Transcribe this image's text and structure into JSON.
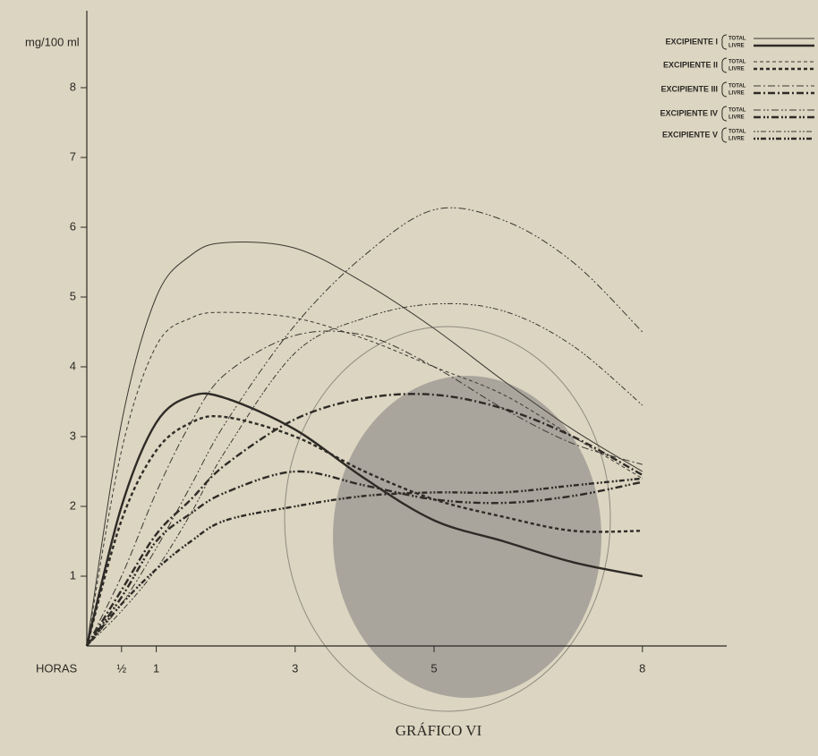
{
  "chart_data": {
    "type": "line",
    "title": "GRÁFICO VI",
    "y_label": "mg/100 ml",
    "x_label": "HORAS",
    "x": [
      0,
      0.5,
      1,
      1.5,
      2,
      3,
      4,
      5,
      6,
      7,
      8
    ],
    "xlim": [
      0,
      9.2
    ],
    "xticks": [
      {
        "value": 0.5,
        "label": "½"
      },
      1,
      3,
      5,
      8
    ],
    "ylim": [
      0,
      9
    ],
    "yticks": [
      1,
      2,
      3,
      4,
      5,
      6,
      7,
      8
    ],
    "legend_groups": [
      "EXCIPIENTE I",
      "EXCIPIENTE II",
      "EXCIPIENTE III",
      "EXCIPIENTE IV",
      "EXCIPIENTE V"
    ],
    "series": [
      {
        "name": "TOTAL",
        "color": "#3b3833",
        "width": 1,
        "dash": "",
        "values": [
          0,
          3.2,
          5.0,
          5.6,
          5.78,
          5.7,
          5.2,
          4.55,
          3.8,
          3.1,
          2.5
        ]
      },
      {
        "name": "LIVRE",
        "color": "#2e2b27",
        "width": 2.4,
        "dash": "",
        "values": [
          0,
          2.0,
          3.2,
          3.58,
          3.55,
          3.1,
          2.4,
          1.8,
          1.5,
          1.2,
          1.0
        ]
      },
      {
        "name": "TOTAL",
        "color": "#3b3833",
        "width": 1,
        "dash": "4 3",
        "values": [
          0,
          2.8,
          4.3,
          4.7,
          4.78,
          4.7,
          4.4,
          4.0,
          3.6,
          3.0,
          2.4
        ]
      },
      {
        "name": "LIVRE",
        "color": "#2e2b27",
        "width": 2.4,
        "dash": "4 3",
        "values": [
          0,
          1.8,
          2.8,
          3.2,
          3.28,
          3.0,
          2.5,
          2.1,
          1.85,
          1.65,
          1.65
        ]
      },
      {
        "name": "TOTAL",
        "color": "#3b3833",
        "width": 1,
        "dash": "8 3 2 3",
        "values": [
          0,
          1.0,
          2.2,
          3.2,
          3.9,
          4.45,
          4.45,
          4.0,
          3.4,
          2.9,
          2.6
        ]
      },
      {
        "name": "LIVRE",
        "color": "#2e2b27",
        "width": 2.4,
        "dash": "8 3 2 3",
        "values": [
          0,
          0.8,
          1.6,
          2.1,
          2.6,
          3.25,
          3.55,
          3.6,
          3.4,
          3.0,
          2.45
        ]
      },
      {
        "name": "TOTAL",
        "color": "#3b3833",
        "width": 1,
        "dash": "8 3 2 2 2 3",
        "values": [
          0,
          0.6,
          1.4,
          2.3,
          3.2,
          4.6,
          5.6,
          6.25,
          6.1,
          5.5,
          4.5
        ]
      },
      {
        "name": "LIVRE",
        "color": "#2e2b27",
        "width": 2.4,
        "dash": "8 3 2 2 2 3",
        "values": [
          0,
          0.7,
          1.5,
          1.9,
          2.2,
          2.5,
          2.3,
          2.1,
          2.05,
          2.15,
          2.35
        ]
      },
      {
        "name": "TOTAL",
        "color": "#3b3833",
        "width": 1,
        "dash": "2 2 2 2 6 3",
        "values": [
          0,
          0.5,
          1.1,
          1.9,
          2.8,
          4.2,
          4.7,
          4.9,
          4.8,
          4.3,
          3.45
        ]
      },
      {
        "name": "LIVRE",
        "color": "#2e2b27",
        "width": 2.4,
        "dash": "2 2 2 2 6 3",
        "values": [
          0,
          0.6,
          1.1,
          1.5,
          1.8,
          2.0,
          2.15,
          2.2,
          2.2,
          2.3,
          2.4
        ]
      }
    ]
  }
}
